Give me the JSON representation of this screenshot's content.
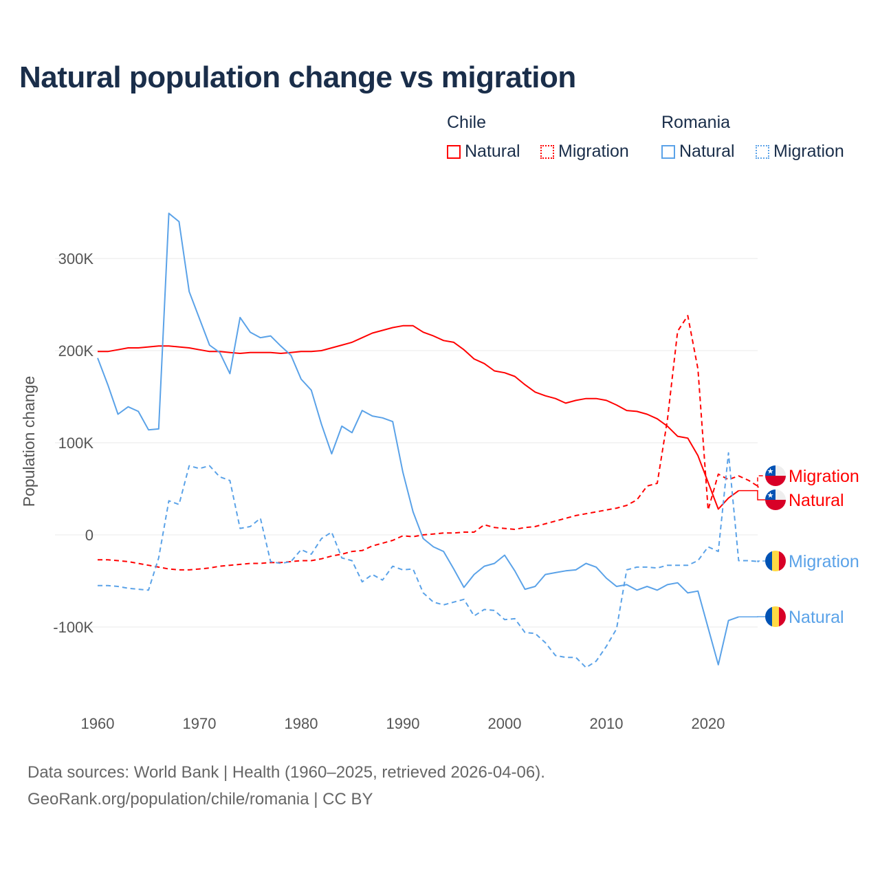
{
  "chart_data": {
    "type": "line",
    "title": "Natural population change vs migration",
    "xlabel": "",
    "ylabel": "Population change",
    "xlim": [
      1960,
      2025
    ],
    "ylim": [
      -150000,
      350000
    ],
    "x_ticks": [
      1960,
      1970,
      1980,
      1990,
      2000,
      2010,
      2020
    ],
    "x_tick_labels": [
      "1960",
      "1970",
      "1980",
      "1990",
      "2000",
      "2010",
      "2020"
    ],
    "y_ticks": [
      -100000,
      0,
      100000,
      200000,
      300000
    ],
    "y_tick_labels": [
      "-100K",
      "0",
      "100K",
      "200K",
      "300K"
    ],
    "grid": true,
    "legend": {
      "placement": "top-right",
      "groups": [
        {
          "name": "Chile",
          "items": [
            "Natural",
            "Migration"
          ]
        },
        {
          "name": "Romania",
          "items": [
            "Natural",
            "Migration"
          ]
        }
      ]
    },
    "x_start": 1960,
    "series": [
      {
        "country": "Chile",
        "name": "Natural",
        "color": "#ff0000",
        "style": "solid",
        "end_label": "Migration_unused",
        "values_k": [
          199,
          199,
          201,
          203,
          203,
          204,
          205,
          205,
          204,
          203,
          201,
          199,
          199,
          198,
          197,
          198,
          198,
          198,
          197,
          198,
          199,
          199,
          200,
          203,
          206,
          209,
          214,
          219,
          222,
          225,
          227,
          227,
          220,
          216,
          211,
          209,
          201,
          191,
          186,
          178,
          176,
          172,
          163,
          155,
          151,
          148,
          143,
          146,
          148,
          148,
          146,
          141,
          135,
          134,
          131,
          126,
          118,
          107,
          105,
          86,
          57,
          28,
          40,
          48
        ]
      },
      {
        "country": "Chile",
        "name": "Migration",
        "color": "#ff0000",
        "style": "dashed",
        "values_k": [
          -27,
          -27,
          -28,
          -29,
          -31,
          -33,
          -35,
          -37,
          -38,
          -38,
          -37,
          -36,
          -34,
          -33,
          -32,
          -31,
          -31,
          -30,
          -30,
          -29,
          -28,
          -28,
          -26,
          -23,
          -21,
          -18,
          -17,
          -12,
          -9,
          -6,
          -1,
          -2,
          0,
          1,
          2,
          2,
          3,
          3,
          11,
          8,
          7,
          6,
          8,
          9,
          12,
          15,
          18,
          21,
          23,
          25,
          27,
          29,
          32,
          38,
          53,
          56,
          125,
          221,
          238,
          180,
          27,
          66,
          60,
          64,
          59,
          52
        ]
      },
      {
        "country": "Romania",
        "name": "Natural",
        "color": "#5aa2e8",
        "style": "solid",
        "values_k": [
          192,
          163,
          131,
          139,
          134,
          114,
          115,
          349,
          340,
          264,
          235,
          206,
          198,
          175,
          236,
          220,
          214,
          216,
          205,
          195,
          169,
          157,
          120,
          88,
          118,
          111,
          135,
          129,
          127,
          123,
          68,
          25,
          -4,
          -13,
          -18,
          -37,
          -57,
          -43,
          -34,
          -31,
          -22,
          -39,
          -59,
          -56,
          -43,
          -41,
          -39,
          -38,
          -31,
          -35,
          -47,
          -56,
          -54,
          -60,
          -56,
          -60,
          -54,
          -52,
          -63,
          -61,
          -101,
          -141,
          -93,
          -89
        ]
      },
      {
        "country": "Romania",
        "name": "Migration",
        "color": "#5aa2e8",
        "style": "dashed",
        "values_k": [
          -55,
          -55,
          -56,
          -58,
          -59,
          -60,
          -25,
          37,
          33,
          75,
          72,
          75,
          63,
          59,
          7,
          9,
          18,
          -29,
          -31,
          -29,
          -16,
          -21,
          -4,
          3,
          -25,
          -28,
          -51,
          -43,
          -49,
          -34,
          -38,
          -37,
          -63,
          -73,
          -76,
          -73,
          -70,
          -88,
          -81,
          -82,
          -92,
          -91,
          -106,
          -107,
          -117,
          -131,
          -133,
          -133,
          -144,
          -137,
          -121,
          -102,
          -38,
          -35,
          -35,
          -36,
          -33,
          -33,
          -33,
          -28,
          -13,
          -18,
          89,
          -28,
          -28,
          -29
        ]
      }
    ],
    "end_labels": [
      {
        "text": "Migration",
        "series": 1,
        "flag": "chile"
      },
      {
        "text": "Natural",
        "series": 0,
        "flag": "chile"
      },
      {
        "text": "Migration",
        "series": 3,
        "flag": "romania"
      },
      {
        "text": "Natural",
        "series": 2,
        "flag": "romania"
      }
    ]
  },
  "legend_text": {
    "chile": "Chile",
    "romania": "Romania",
    "natural": "Natural",
    "migration": "Migration"
  },
  "footer": {
    "line1": "Data sources: World Bank | Health (1960–2025, retrieved 2026-04-06).",
    "line2": "GeoRank.org/population/chile/romania | CC BY"
  }
}
